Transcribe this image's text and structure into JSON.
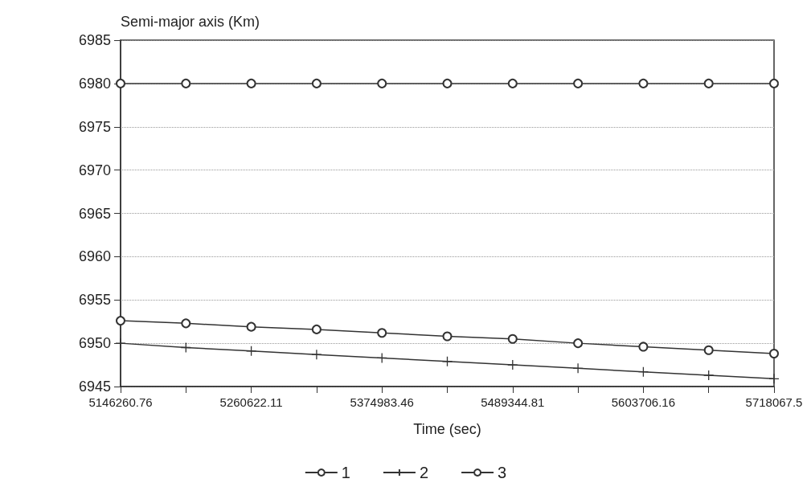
{
  "chart_data": {
    "type": "line",
    "ylabel": "Semi-major axis (Km)",
    "xlabel": "Time (sec)",
    "x": [
      5146260.76,
      5203441.435,
      5260622.11,
      5317802.785,
      5374983.46,
      5432164.135,
      5489344.81,
      5546525.485,
      5603706.16,
      5660886.835,
      5718067.5
    ],
    "series": [
      {
        "name": "1",
        "color": "#333333",
        "marker": "circle",
        "values": [
          6980,
          6980,
          6980,
          6980,
          6980,
          6980,
          6980,
          6980,
          6980,
          6980,
          6980
        ]
      },
      {
        "name": "2",
        "color": "#333333",
        "marker": "cross",
        "values": [
          6950.0,
          6949.5,
          6949.1,
          6948.7,
          6948.3,
          6947.9,
          6947.5,
          6947.1,
          6946.7,
          6946.3,
          6945.9
        ]
      },
      {
        "name": "3",
        "color": "#333333",
        "marker": "circle",
        "values": [
          6952.6,
          6952.3,
          6951.9,
          6951.6,
          6951.2,
          6950.8,
          6950.5,
          6950.0,
          6949.6,
          6949.2,
          6948.8
        ]
      }
    ],
    "xlim": [
      5146260.76,
      5718067.5
    ],
    "xticks": [
      5146260.76,
      {
        "value": 5203441.435,
        "label": null
      },
      5260622.11,
      {
        "value": 5317802.785,
        "label": null
      },
      5374983.46,
      {
        "value": 5432164.135,
        "label": null
      },
      5489344.81,
      {
        "value": 5546525.485,
        "label": null
      },
      5603706.16,
      {
        "value": 5660886.835,
        "label": null
      },
      5718067.5
    ],
    "ylim": [
      6945,
      6985
    ],
    "yticks": [
      6945,
      6950,
      6955,
      6960,
      6965,
      6970,
      6975,
      6980,
      6985
    ],
    "grid": "y",
    "legend": "bottom",
    "line_style": "solid"
  }
}
